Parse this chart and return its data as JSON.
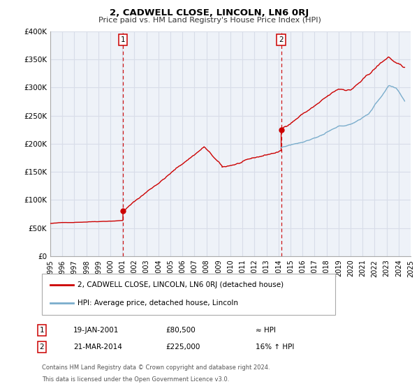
{
  "title": "2, CADWELL CLOSE, LINCOLN, LN6 0RJ",
  "subtitle": "Price paid vs. HM Land Registry's House Price Index (HPI)",
  "legend_line1": "2, CADWELL CLOSE, LINCOLN, LN6 0RJ (detached house)",
  "legend_line2": "HPI: Average price, detached house, Lincoln",
  "footer1": "Contains HM Land Registry data © Crown copyright and database right 2024.",
  "footer2": "This data is licensed under the Open Government Licence v3.0.",
  "marker1_date": "19-JAN-2001",
  "marker1_price": "£80,500",
  "marker1_hpi": "≈ HPI",
  "marker2_date": "21-MAR-2014",
  "marker2_price": "£225,000",
  "marker2_hpi": "16% ↑ HPI",
  "marker1_x": 2001.05,
  "marker1_y": 80500,
  "marker2_x": 2014.22,
  "marker2_y": 225000,
  "vline1_x": 2001.05,
  "vline2_x": 2014.22,
  "xlim": [
    1995,
    2025
  ],
  "ylim": [
    0,
    400000
  ],
  "yticks": [
    0,
    50000,
    100000,
    150000,
    200000,
    250000,
    300000,
    350000,
    400000
  ],
  "ytick_labels": [
    "£0",
    "£50K",
    "£100K",
    "£150K",
    "£200K",
    "£250K",
    "£300K",
    "£350K",
    "£400K"
  ],
  "red_color": "#cc0000",
  "blue_color": "#7aadcc",
  "vline_color": "#cc0000",
  "plot_bg": "#eef2f8",
  "grid_color": "#d8dde8"
}
